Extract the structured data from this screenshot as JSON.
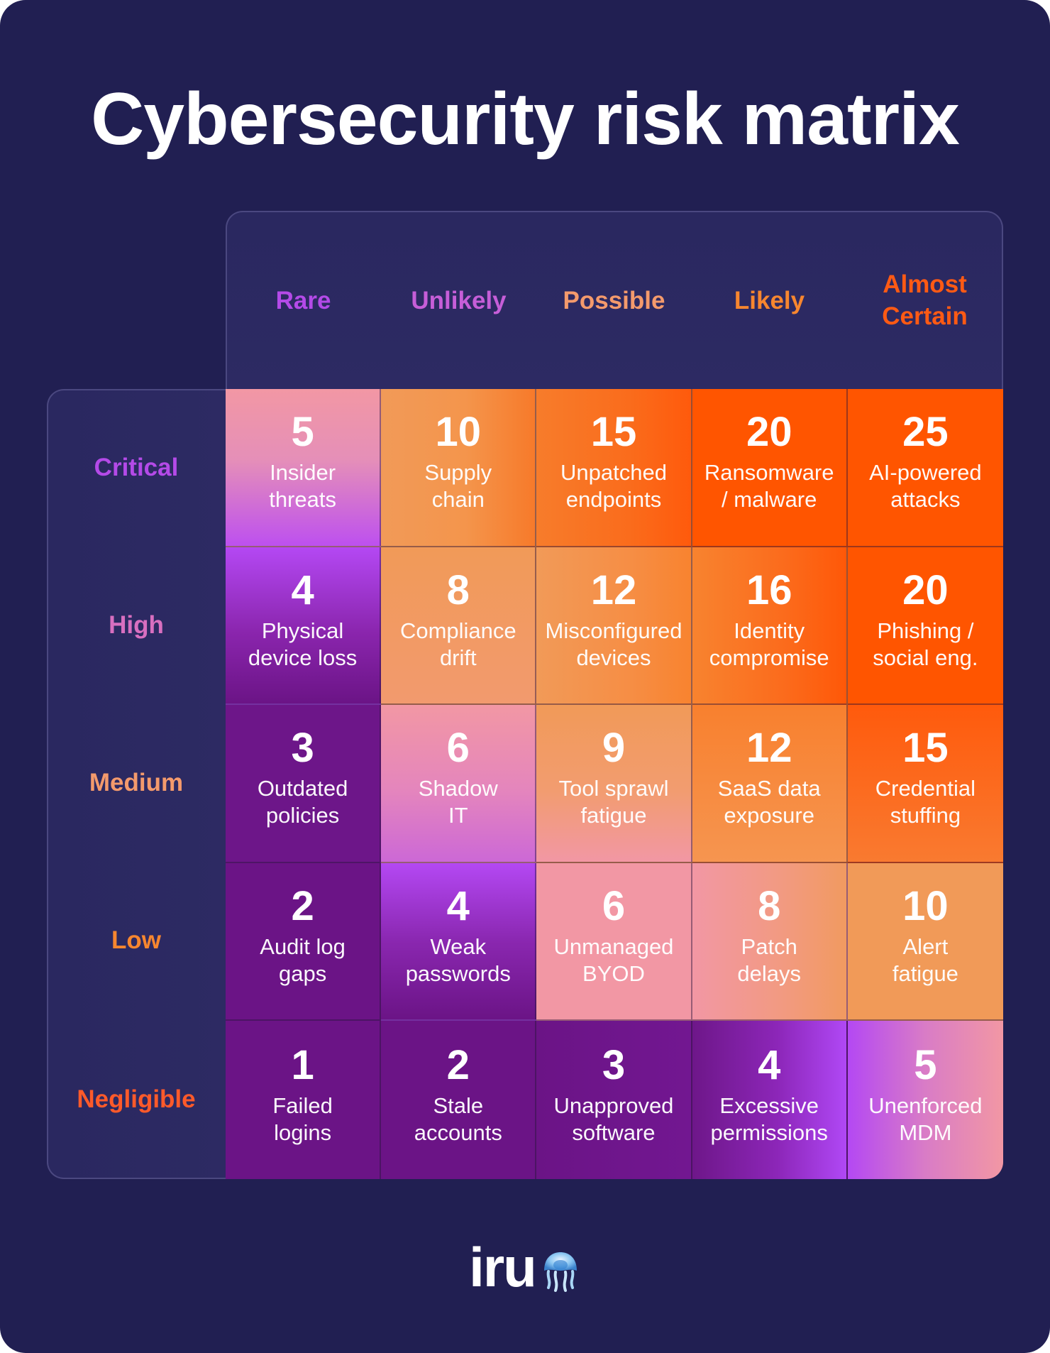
{
  "title": "Cybersecurity risk matrix",
  "columns": [
    {
      "label": "Rare",
      "color": "#b44ae8"
    },
    {
      "label": "Unlikely",
      "color": "#c65ed8"
    },
    {
      "label": "Possible",
      "color": "#f49a6c"
    },
    {
      "label": "Likely",
      "color": "#f7862f"
    },
    {
      "label": "Almost\nCertain",
      "color": "#ff5a14"
    }
  ],
  "rows": [
    {
      "label": "Critical",
      "color": "#b44ae8"
    },
    {
      "label": "High",
      "color": "#d86fc0"
    },
    {
      "label": "Medium",
      "color": "#f49a6c"
    },
    {
      "label": "Low",
      "color": "#f7862f"
    },
    {
      "label": "Negligible",
      "color": "#ff5a2a"
    }
  ],
  "cells": [
    [
      {
        "score": "5",
        "label": "Insider\nthreats"
      },
      {
        "score": "10",
        "label": "Supply\nchain"
      },
      {
        "score": "15",
        "label": "Unpatched\nendpoints"
      },
      {
        "score": "20",
        "label": "Ransomware\n/ malware"
      },
      {
        "score": "25",
        "label": "AI-powered\nattacks"
      }
    ],
    [
      {
        "score": "4",
        "label": "Physical\ndevice loss"
      },
      {
        "score": "8",
        "label": "Compliance\ndrift"
      },
      {
        "score": "12",
        "label": "Misconfigured\ndevices"
      },
      {
        "score": "16",
        "label": "Identity\ncompromise"
      },
      {
        "score": "20",
        "label": "Phishing /\nsocial eng."
      }
    ],
    [
      {
        "score": "3",
        "label": "Outdated\npolicies"
      },
      {
        "score": "6",
        "label": "Shadow\nIT"
      },
      {
        "score": "9",
        "label": "Tool sprawl\nfatigue"
      },
      {
        "score": "12",
        "label": "SaaS data\nexposure"
      },
      {
        "score": "15",
        "label": "Credential\nstuffing"
      }
    ],
    [
      {
        "score": "2",
        "label": "Audit log\ngaps"
      },
      {
        "score": "4",
        "label": "Weak\npasswords"
      },
      {
        "score": "6",
        "label": "Unmanaged\nBYOD"
      },
      {
        "score": "8",
        "label": "Patch\ndelays"
      },
      {
        "score": "10",
        "label": "Alert\nfatigue"
      }
    ],
    [
      {
        "score": "1",
        "label": "Failed\nlogins"
      },
      {
        "score": "2",
        "label": "Stale\naccounts"
      },
      {
        "score": "3",
        "label": "Unapproved\nsoftware"
      },
      {
        "score": "4",
        "label": "Excessive\npermissions"
      },
      {
        "score": "5",
        "label": "Unenforced\nMDM"
      }
    ]
  ],
  "logo": {
    "text": "iru",
    "icon": "jellyfish-icon"
  },
  "colors": {
    "background": "#211f52",
    "pink": "#f297a4",
    "purple": "#b048f5",
    "deep_purple": "#6b1486",
    "light_orange": "#f19a58",
    "orange": "#f87c2b",
    "red_orange": "#ff5500"
  }
}
